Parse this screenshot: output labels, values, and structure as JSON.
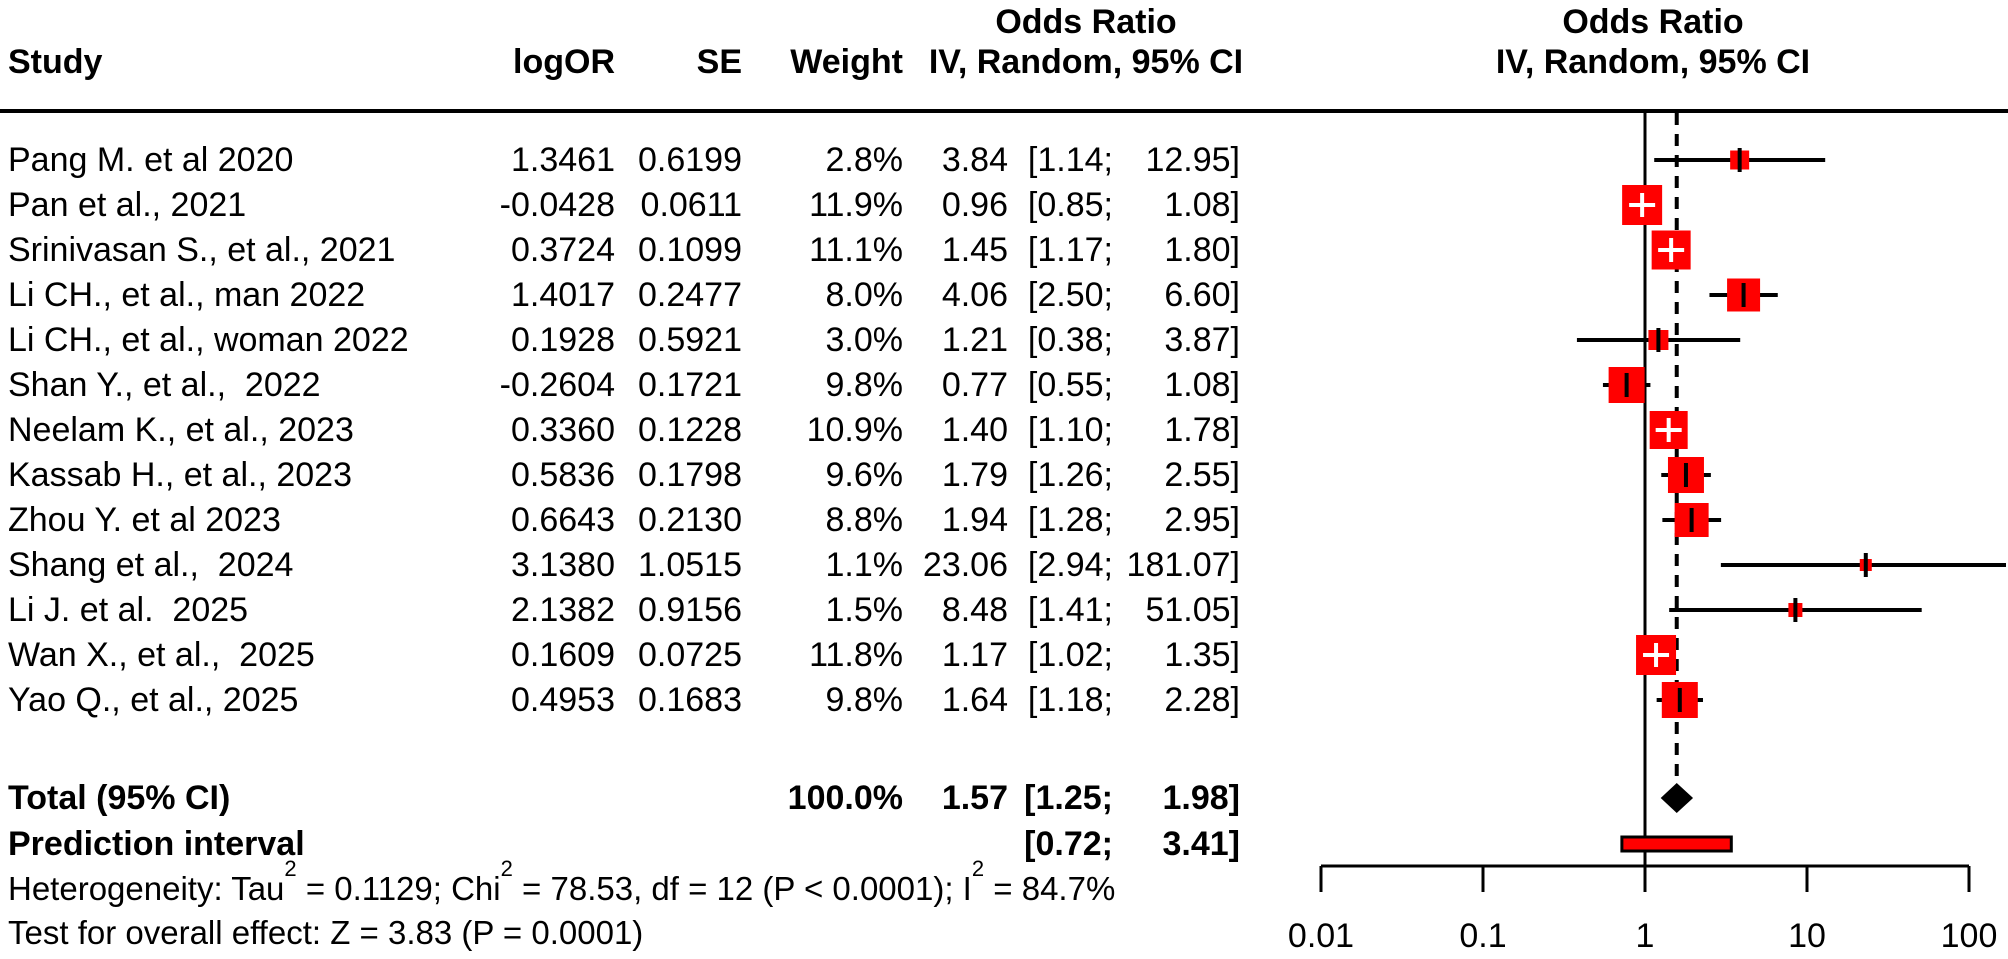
{
  "figure": {
    "header": {
      "study": "Study",
      "logor": "logOR",
      "se": "SE",
      "weight": "Weight",
      "effect_col_title": "Odds Ratio",
      "effect_col_subtitle": "IV, Random, 95% CI",
      "plot_col_title": "Odds Ratio",
      "plot_col_subtitle": "IV, Random, 95% CI"
    },
    "total_row": {
      "label": "Total (95% CI)"
    },
    "prediction_row": {
      "label": "Prediction interval"
    },
    "heterogeneity_segments": [
      {
        "text": "Heterogeneity: Tau"
      },
      {
        "sup": "2"
      },
      {
        "text": " = 0.1129; Chi"
      },
      {
        "sup": "2"
      },
      {
        "text": " = 78.53, df = 12 (P < 0.0001); I"
      },
      {
        "sup": "2"
      },
      {
        "text": " = 84.7%"
      }
    ],
    "overall_effect": "Test for overall effect: Z = 3.83 (P = 0.0001)"
  },
  "chart_data": {
    "type": "forest",
    "effect_measure": "Odds Ratio",
    "model": "IV, Random, 95% CI",
    "x_scale": "log10",
    "xlim": [
      0.01,
      100
    ],
    "axis_ticks": [
      0.01,
      0.1,
      1,
      10,
      100
    ],
    "reference_line": 1,
    "pooled_effect_line": 1.57,
    "studies": [
      {
        "name": "Pang M. et al 2020",
        "logor": 1.3461,
        "se": 0.6199,
        "weight_pct": 2.8,
        "or": 3.84,
        "ci_low": 1.14,
        "ci_high": 12.95
      },
      {
        "name": "Pan et al., 2021",
        "logor": -0.0428,
        "se": 0.0611,
        "weight_pct": 11.9,
        "or": 0.96,
        "ci_low": 0.85,
        "ci_high": 1.08
      },
      {
        "name": "Srinivasan S., et al., 2021",
        "logor": 0.3724,
        "se": 0.1099,
        "weight_pct": 11.1,
        "or": 1.45,
        "ci_low": 1.17,
        "ci_high": 1.8
      },
      {
        "name": "Li CH., et al., man 2022",
        "logor": 1.4017,
        "se": 0.2477,
        "weight_pct": 8.0,
        "or": 4.06,
        "ci_low": 2.5,
        "ci_high": 6.6
      },
      {
        "name": "Li CH., et al., woman 2022",
        "logor": 0.1928,
        "se": 0.5921,
        "weight_pct": 3.0,
        "or": 1.21,
        "ci_low": 0.38,
        "ci_high": 3.87
      },
      {
        "name": "Shan Y., et al.,  2022",
        "logor": -0.2604,
        "se": 0.1721,
        "weight_pct": 9.8,
        "or": 0.77,
        "ci_low": 0.55,
        "ci_high": 1.08
      },
      {
        "name": "Neelam K., et al., 2023",
        "logor": 0.336,
        "se": 0.1228,
        "weight_pct": 10.9,
        "or": 1.4,
        "ci_low": 1.1,
        "ci_high": 1.78
      },
      {
        "name": "Kassab H., et al., 2023",
        "logor": 0.5836,
        "se": 0.1798,
        "weight_pct": 9.6,
        "or": 1.79,
        "ci_low": 1.26,
        "ci_high": 2.55
      },
      {
        "name": "Zhou Y. et al 2023",
        "logor": 0.6643,
        "se": 0.213,
        "weight_pct": 8.8,
        "or": 1.94,
        "ci_low": 1.28,
        "ci_high": 2.95
      },
      {
        "name": "Shang et al.,  2024",
        "logor": 3.138,
        "se": 1.0515,
        "weight_pct": 1.1,
        "or": 23.06,
        "ci_low": 2.94,
        "ci_high": 181.07
      },
      {
        "name": "Li J. et al.  2025",
        "logor": 2.1382,
        "se": 0.9156,
        "weight_pct": 1.5,
        "or": 8.48,
        "ci_low": 1.41,
        "ci_high": 51.05
      },
      {
        "name": "Wan X., et al.,  2025",
        "logor": 0.1609,
        "se": 0.0725,
        "weight_pct": 11.8,
        "or": 1.17,
        "ci_low": 1.02,
        "ci_high": 1.35
      },
      {
        "name": "Yao Q., et al., 2025",
        "logor": 0.4953,
        "se": 0.1683,
        "weight_pct": 9.8,
        "or": 1.64,
        "ci_low": 1.18,
        "ci_high": 2.28
      }
    ],
    "total": {
      "or": 1.57,
      "ci_low": 1.25,
      "ci_high": 1.98,
      "weight_pct": 100.0
    },
    "prediction_interval": {
      "ci_low": 0.72,
      "ci_high": 3.41
    },
    "legend_position": "none",
    "grid": false,
    "colors": {
      "square": "#FF0000",
      "line": "#000000",
      "diamond": "#000000",
      "prediction_fill": "#FF0000",
      "prediction_border": "#000000"
    }
  }
}
